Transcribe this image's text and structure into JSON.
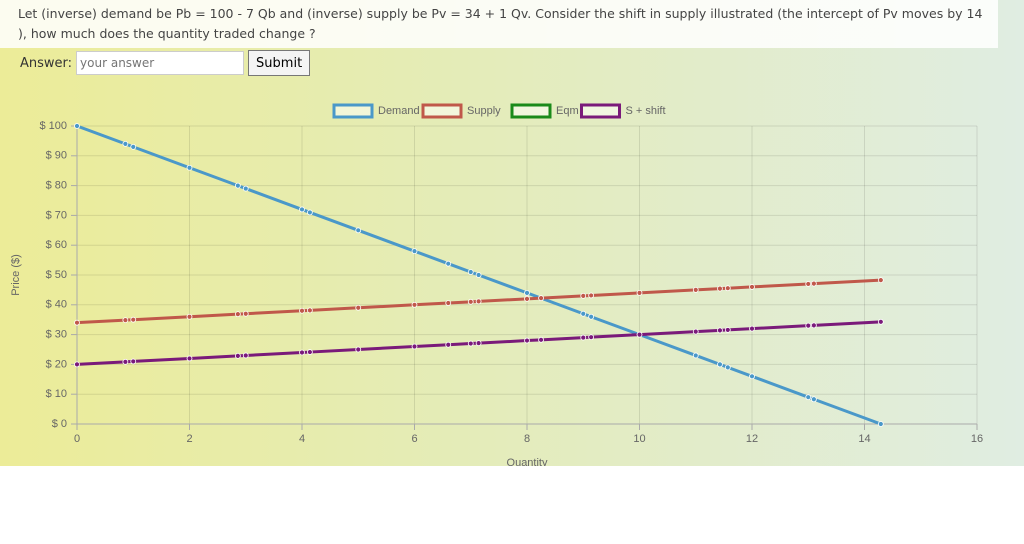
{
  "question": "Let (inverse) demand be Pb = 100 - 7 Qb and (inverse) supply be Pv = 34 + 1 Qv. Consider the shift in supply illustrated (the intercept of Pv moves by 14 ), how much does the quantity traded change ?",
  "answer_label": "Answer:",
  "answer_placeholder": "your answer",
  "submit": "Submit",
  "chart_data": {
    "type": "line",
    "xlabel": "Quantity",
    "ylabel": "Price ($)",
    "xlim": [
      0,
      16
    ],
    "ylim": [
      0,
      100
    ],
    "xticks": [
      0,
      2,
      4,
      6,
      8,
      10,
      12,
      14,
      16
    ],
    "yticks": [
      {
        "value": 0,
        "label": "$ 0"
      },
      {
        "value": 10,
        "label": "$ 10"
      },
      {
        "value": 20,
        "label": "$ 20"
      },
      {
        "value": 30,
        "label": "$ 30"
      },
      {
        "value": 40,
        "label": "$ 40"
      },
      {
        "value": 50,
        "label": "$ 50"
      },
      {
        "value": 60,
        "label": "$ 60"
      },
      {
        "value": 70,
        "label": "$ 70"
      },
      {
        "value": 80,
        "label": "$ 80"
      },
      {
        "value": 90,
        "label": "$ 90"
      },
      {
        "value": 100,
        "label": "$ 100"
      }
    ],
    "grid": true,
    "legend": "top",
    "series": [
      {
        "name": "Demand",
        "color": "#4a98c9",
        "x": [
          0,
          0.86,
          1,
          2,
          2.86,
          3,
          4,
          4.14,
          5,
          6,
          6.6,
          7,
          7.14,
          8,
          8.25,
          9,
          9.14,
          10,
          11,
          11.43,
          11.57,
          12,
          13,
          13.1,
          14.29
        ],
        "values": [
          100,
          94,
          93,
          86,
          80,
          79,
          72,
          71,
          65,
          58,
          53.8,
          51,
          50,
          44,
          42.25,
          37,
          36,
          30,
          23,
          20,
          19,
          16,
          9,
          8.3,
          0
        ]
      },
      {
        "name": "Supply",
        "color": "#c0584a",
        "x": [
          0,
          0.86,
          1,
          2,
          2.86,
          3,
          4,
          4.14,
          5,
          6,
          6.6,
          7,
          7.14,
          8,
          8.25,
          9,
          9.14,
          10,
          11,
          11.43,
          11.57,
          12,
          13,
          13.1,
          14.29
        ],
        "values": [
          34,
          34.86,
          35,
          36,
          36.86,
          37,
          38,
          38.14,
          39,
          40,
          40.6,
          41,
          41.14,
          42,
          42.25,
          43,
          43.14,
          44,
          45,
          45.43,
          45.57,
          46,
          47,
          47.1,
          48.29
        ]
      },
      {
        "name": "Eqm",
        "color": "#1a8a1a",
        "x": [],
        "values": []
      },
      {
        "name": "S + shift",
        "color": "#7a1a7a",
        "x": [
          0,
          0.86,
          1,
          2,
          2.86,
          3,
          4,
          4.14,
          5,
          6,
          6.6,
          7,
          7.14,
          8,
          8.25,
          9,
          9.14,
          10,
          11,
          11.43,
          11.57,
          12,
          13,
          13.1,
          14.29
        ],
        "values": [
          20,
          20.86,
          21,
          22,
          22.86,
          23,
          24,
          24.14,
          25,
          26,
          26.6,
          27,
          27.14,
          28,
          28.25,
          29,
          29.14,
          30,
          31,
          31.43,
          31.57,
          32,
          33,
          33.1,
          34.29
        ]
      }
    ]
  }
}
